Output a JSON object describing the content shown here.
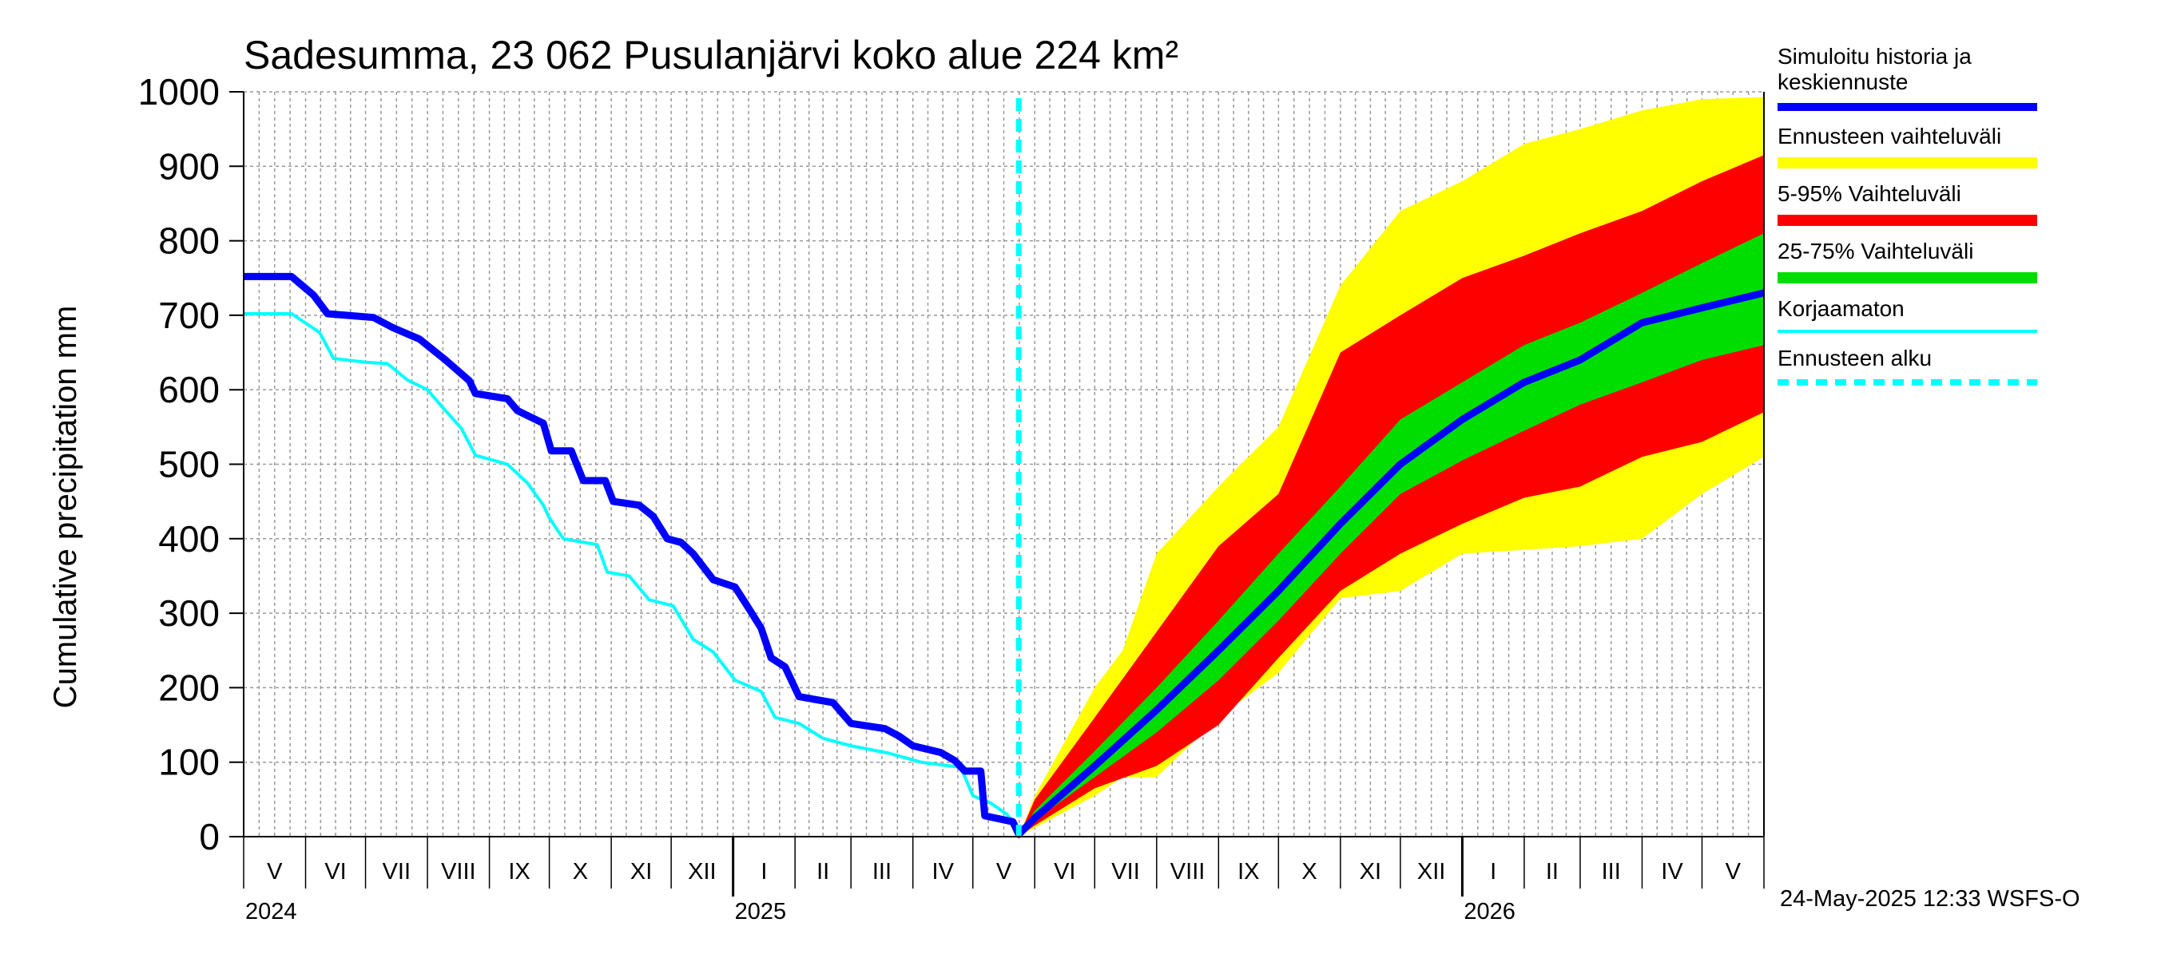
{
  "chart_data": {
    "type": "area",
    "title": "Sadesumma, 23 062 Pusulanjärvi koko alue 224 km²",
    "ylabel": "Cumulative precipitation   mm",
    "xlabel": "",
    "ylim": [
      0,
      1000
    ],
    "yticks": [
      0,
      100,
      200,
      300,
      400,
      500,
      600,
      700,
      800,
      900,
      1000
    ],
    "grid": true,
    "legend_position": "right",
    "x_start": "2024-05-01",
    "x_end": "2026-06-01",
    "forecast_start": "2025-05-24",
    "months": [
      {
        "label": "V",
        "start": "2024-05-01"
      },
      {
        "label": "VI",
        "start": "2024-06-01"
      },
      {
        "label": "VII",
        "start": "2024-07-01"
      },
      {
        "label": "VIII",
        "start": "2024-08-01"
      },
      {
        "label": "IX",
        "start": "2024-09-01"
      },
      {
        "label": "X",
        "start": "2024-10-01"
      },
      {
        "label": "XI",
        "start": "2024-11-01"
      },
      {
        "label": "XII",
        "start": "2024-12-01"
      },
      {
        "label": "I",
        "start": "2025-01-01"
      },
      {
        "label": "II",
        "start": "2025-02-01"
      },
      {
        "label": "III",
        "start": "2025-03-01"
      },
      {
        "label": "IV",
        "start": "2025-04-01"
      },
      {
        "label": "V",
        "start": "2025-05-01"
      },
      {
        "label": "VI",
        "start": "2025-06-01"
      },
      {
        "label": "VII",
        "start": "2025-07-01"
      },
      {
        "label": "VIII",
        "start": "2025-08-01"
      },
      {
        "label": "IX",
        "start": "2025-09-01"
      },
      {
        "label": "X",
        "start": "2025-10-01"
      },
      {
        "label": "XI",
        "start": "2025-11-01"
      },
      {
        "label": "XII",
        "start": "2025-12-01"
      },
      {
        "label": "I",
        "start": "2026-01-01"
      },
      {
        "label": "II",
        "start": "2026-02-01"
      },
      {
        "label": "III",
        "start": "2026-03-01"
      },
      {
        "label": "IV",
        "start": "2026-04-01"
      },
      {
        "label": "V",
        "start": "2026-05-01"
      }
    ],
    "years": [
      {
        "label": "2024",
        "start": "2024-05-01"
      },
      {
        "label": "2025",
        "start": "2025-01-01"
      },
      {
        "label": "2026",
        "start": "2026-01-01"
      }
    ],
    "series": [
      {
        "name": "Simuloitu historia ja keskiennuste",
        "color": "#0000ff",
        "points": [
          [
            "2024-05-01",
            752
          ],
          [
            "2024-05-25",
            752
          ],
          [
            "2024-06-05",
            727
          ],
          [
            "2024-06-12",
            702
          ],
          [
            "2024-07-05",
            697
          ],
          [
            "2024-07-15",
            683
          ],
          [
            "2024-07-28",
            668
          ],
          [
            "2024-08-10",
            640
          ],
          [
            "2024-08-22",
            612
          ],
          [
            "2024-08-25",
            595
          ],
          [
            "2024-09-10",
            588
          ],
          [
            "2024-09-15",
            572
          ],
          [
            "2024-09-28",
            555
          ],
          [
            "2024-10-02",
            518
          ],
          [
            "2024-10-12",
            518
          ],
          [
            "2024-10-18",
            478
          ],
          [
            "2024-10-29",
            478
          ],
          [
            "2024-11-02",
            450
          ],
          [
            "2024-11-15",
            445
          ],
          [
            "2024-11-22",
            430
          ],
          [
            "2024-11-29",
            400
          ],
          [
            "2024-12-06",
            395
          ],
          [
            "2024-12-12",
            380
          ],
          [
            "2024-12-22",
            345
          ],
          [
            "2025-01-02",
            335
          ],
          [
            "2025-01-08",
            310
          ],
          [
            "2025-01-15",
            280
          ],
          [
            "2025-01-20",
            240
          ],
          [
            "2025-01-27",
            228
          ],
          [
            "2025-02-03",
            188
          ],
          [
            "2025-02-20",
            180
          ],
          [
            "2025-03-01",
            152
          ],
          [
            "2025-03-18",
            145
          ],
          [
            "2025-03-25",
            135
          ],
          [
            "2025-04-01",
            122
          ],
          [
            "2025-04-15",
            113
          ],
          [
            "2025-04-22",
            102
          ],
          [
            "2025-04-27",
            88
          ],
          [
            "2025-05-05",
            88
          ],
          [
            "2025-05-07",
            28
          ],
          [
            "2025-05-21",
            20
          ],
          [
            "2025-05-24",
            3
          ],
          [
            "2025-06-01",
            25
          ],
          [
            "2025-07-01",
            95
          ],
          [
            "2025-08-01",
            170
          ],
          [
            "2025-09-01",
            250
          ],
          [
            "2025-10-01",
            330
          ],
          [
            "2025-11-01",
            420
          ],
          [
            "2025-12-01",
            500
          ],
          [
            "2026-01-01",
            560
          ],
          [
            "2026-02-01",
            610
          ],
          [
            "2026-03-01",
            640
          ],
          [
            "2026-04-01",
            690
          ],
          [
            "2026-05-01",
            710
          ],
          [
            "2026-06-01",
            730
          ]
        ]
      },
      {
        "name": "Korjaamaton",
        "color": "#00ffff",
        "points": [
          [
            "2024-05-01",
            702
          ],
          [
            "2024-05-25",
            702
          ],
          [
            "2024-06-08",
            677
          ],
          [
            "2024-06-15",
            642
          ],
          [
            "2024-07-01",
            637
          ],
          [
            "2024-07-12",
            635
          ],
          [
            "2024-07-22",
            613
          ],
          [
            "2024-08-01",
            600
          ],
          [
            "2024-08-08",
            578
          ],
          [
            "2024-08-18",
            548
          ],
          [
            "2024-08-25",
            512
          ],
          [
            "2024-09-10",
            500
          ],
          [
            "2024-09-20",
            475
          ],
          [
            "2024-09-28",
            445
          ],
          [
            "2024-10-01",
            428
          ],
          [
            "2024-10-08",
            400
          ],
          [
            "2024-10-25",
            392
          ],
          [
            "2024-10-30",
            355
          ],
          [
            "2024-11-10",
            350
          ],
          [
            "2024-11-20",
            318
          ],
          [
            "2024-12-02",
            310
          ],
          [
            "2024-12-12",
            265
          ],
          [
            "2024-12-22",
            248
          ],
          [
            "2025-01-02",
            210
          ],
          [
            "2025-01-15",
            195
          ],
          [
            "2025-01-22",
            160
          ],
          [
            "2025-02-03",
            152
          ],
          [
            "2025-02-15",
            132
          ],
          [
            "2025-03-01",
            122
          ],
          [
            "2025-03-20",
            112
          ],
          [
            "2025-04-05",
            100
          ],
          [
            "2025-04-25",
            93
          ],
          [
            "2025-05-01",
            55
          ],
          [
            "2025-05-10",
            45
          ],
          [
            "2025-05-18",
            30
          ],
          [
            "2025-05-24",
            10
          ]
        ]
      }
    ],
    "bands": [
      {
        "name": "Ennusteen vaihteluväli",
        "color": "#ffff00",
        "points": [
          [
            "2025-05-24",
            0,
            0
          ],
          [
            "2025-06-01",
            12,
            55
          ],
          [
            "2025-07-01",
            55,
            200
          ],
          [
            "2025-07-15",
            80,
            250
          ],
          [
            "2025-08-01",
            80,
            380
          ],
          [
            "2025-09-01",
            160,
            470
          ],
          [
            "2025-10-01",
            220,
            550
          ],
          [
            "2025-11-01",
            320,
            740
          ],
          [
            "2025-12-01",
            330,
            840
          ],
          [
            "2026-01-01",
            380,
            880
          ],
          [
            "2026-02-01",
            385,
            930
          ],
          [
            "2026-03-01",
            390,
            950
          ],
          [
            "2026-04-01",
            400,
            975
          ],
          [
            "2026-05-01",
            460,
            990
          ],
          [
            "2026-06-01",
            510,
            993
          ]
        ]
      },
      {
        "name": "5-95% Vaihteluväli",
        "color": "#ff0000",
        "points": [
          [
            "2025-05-24",
            0,
            0
          ],
          [
            "2025-06-01",
            15,
            50
          ],
          [
            "2025-07-01",
            65,
            160
          ],
          [
            "2025-08-01",
            95,
            275
          ],
          [
            "2025-09-01",
            150,
            390
          ],
          [
            "2025-10-01",
            240,
            460
          ],
          [
            "2025-11-01",
            330,
            650
          ],
          [
            "2025-12-01",
            380,
            700
          ],
          [
            "2026-01-01",
            420,
            750
          ],
          [
            "2026-02-01",
            455,
            780
          ],
          [
            "2026-03-01",
            470,
            810
          ],
          [
            "2026-04-01",
            510,
            840
          ],
          [
            "2026-05-01",
            530,
            880
          ],
          [
            "2026-06-01",
            570,
            915
          ]
        ]
      },
      {
        "name": "25-75% Vaihteluväli",
        "color": "#00dd00",
        "points": [
          [
            "2025-05-24",
            0,
            0
          ],
          [
            "2025-06-01",
            22,
            35
          ],
          [
            "2025-07-01",
            80,
            115
          ],
          [
            "2025-08-01",
            140,
            200
          ],
          [
            "2025-09-01",
            210,
            290
          ],
          [
            "2025-10-01",
            290,
            380
          ],
          [
            "2025-11-01",
            380,
            470
          ],
          [
            "2025-12-01",
            460,
            560
          ],
          [
            "2026-01-01",
            505,
            610
          ],
          [
            "2026-02-01",
            545,
            660
          ],
          [
            "2026-03-01",
            580,
            690
          ],
          [
            "2026-04-01",
            610,
            730
          ],
          [
            "2026-05-01",
            640,
            770
          ],
          [
            "2026-06-01",
            660,
            810
          ]
        ]
      }
    ]
  },
  "legend": {
    "items": [
      {
        "label": "Simuloitu historia ja\nkeskiennuste",
        "color": "#0000ff",
        "style": "solid"
      },
      {
        "label": "Ennusteen vaihteluväli",
        "color": "#ffff00",
        "style": "solid"
      },
      {
        "label": "5-95% Vaihteluväli",
        "color": "#ff0000",
        "style": "solid"
      },
      {
        "label": "25-75% Vaihteluväli",
        "color": "#00dd00",
        "style": "solid"
      },
      {
        "label": "Korjaamaton",
        "color": "#00ffff",
        "style": "thin"
      },
      {
        "label": "Ennusteen alku",
        "color": "#00ffff",
        "style": "dashed"
      }
    ]
  },
  "footer": {
    "timestamp": "24-May-2025 12:33 WSFS-O"
  }
}
